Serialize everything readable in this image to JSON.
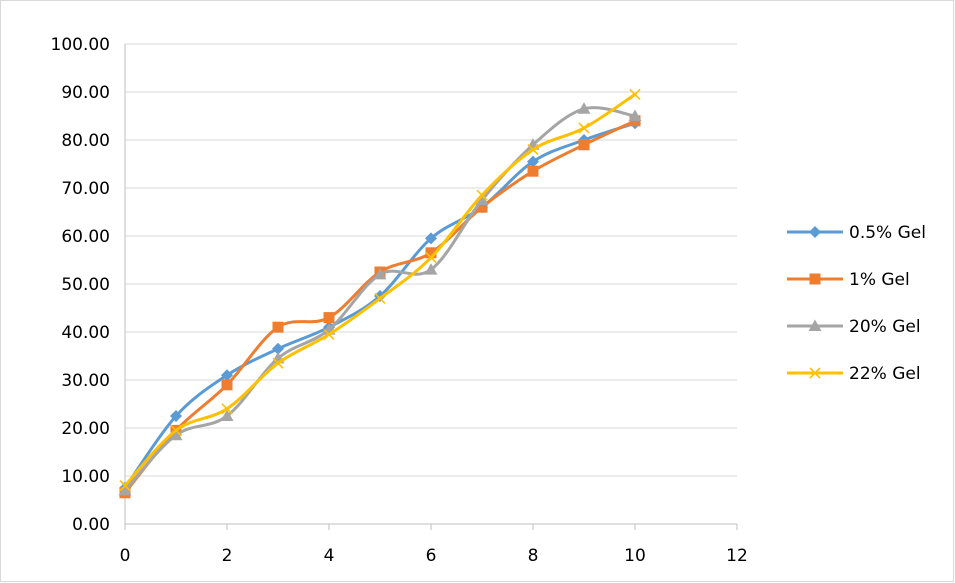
{
  "chart_data": {
    "type": "line",
    "title": "",
    "xlabel": "",
    "ylabel": "",
    "xlim": [
      0,
      12
    ],
    "ylim": [
      0,
      100
    ],
    "x_ticks": [
      0,
      2,
      4,
      6,
      8,
      10,
      12
    ],
    "y_ticks": [
      0,
      10,
      20,
      30,
      40,
      50,
      60,
      70,
      80,
      90,
      100
    ],
    "x_tick_labels": [
      "0",
      "2",
      "4",
      "6",
      "8",
      "10",
      "12"
    ],
    "y_tick_labels": [
      "0.00",
      "10.00",
      "20.00",
      "30.00",
      "40.00",
      "50.00",
      "60.00",
      "70.00",
      "80.00",
      "90.00",
      "100.00"
    ],
    "grid": "horizontal",
    "smooth": true,
    "legend_position": "right",
    "x": [
      0,
      1,
      2,
      3,
      4,
      5,
      6,
      7,
      8,
      9,
      10
    ],
    "series": [
      {
        "name": "0.5% Gel",
        "marker": "diamond",
        "color": "#5b9bd5",
        "values": [
          7.5,
          22.5,
          31.0,
          36.5,
          41.0,
          47.5,
          59.5,
          66.0,
          75.5,
          80.0,
          83.5
        ]
      },
      {
        "name": "1% Gel",
        "marker": "square",
        "color": "#ed7d31",
        "values": [
          6.5,
          19.5,
          29.0,
          41.0,
          43.0,
          52.5,
          56.5,
          66.0,
          73.5,
          79.0,
          84.0
        ]
      },
      {
        "name": "20%  Gel",
        "marker": "triangle",
        "color": "#a5a5a5",
        "values": [
          7.0,
          18.5,
          22.5,
          34.5,
          40.5,
          52.0,
          53.0,
          67.5,
          79.0,
          86.5,
          85.0
        ]
      },
      {
        "name": "22% Gel",
        "marker": "x",
        "color": "#ffc000",
        "values": [
          8.0,
          19.5,
          24.0,
          33.5,
          39.5,
          47.0,
          55.5,
          68.5,
          78.0,
          82.5,
          89.5
        ]
      }
    ]
  }
}
